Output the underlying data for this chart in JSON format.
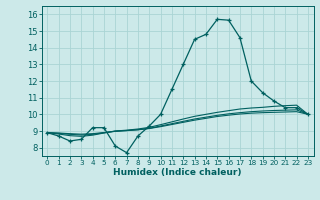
{
  "xlabel": "Humidex (Indice chaleur)",
  "background_color": "#cce9e9",
  "grid_color": "#aad4d4",
  "line_color": "#006060",
  "x_values": [
    0,
    1,
    2,
    3,
    4,
    5,
    6,
    7,
    8,
    9,
    10,
    11,
    12,
    13,
    14,
    15,
    16,
    17,
    18,
    19,
    20,
    21,
    22,
    23
  ],
  "series1": [
    8.9,
    8.7,
    8.4,
    8.5,
    9.2,
    9.2,
    8.1,
    7.7,
    8.7,
    9.3,
    10.0,
    11.5,
    13.0,
    14.5,
    14.8,
    15.7,
    15.65,
    14.6,
    12.0,
    11.3,
    10.8,
    10.4,
    10.4,
    10.0
  ],
  "series2": [
    8.9,
    8.82,
    8.72,
    8.68,
    8.75,
    8.88,
    9.0,
    9.05,
    9.12,
    9.22,
    9.38,
    9.55,
    9.72,
    9.88,
    10.0,
    10.12,
    10.22,
    10.32,
    10.38,
    10.42,
    10.48,
    10.52,
    10.55,
    10.0
  ],
  "series3": [
    8.9,
    8.86,
    8.8,
    8.76,
    8.8,
    8.89,
    8.98,
    9.02,
    9.08,
    9.16,
    9.3,
    9.44,
    9.58,
    9.72,
    9.83,
    9.94,
    10.03,
    10.1,
    10.16,
    10.2,
    10.23,
    10.25,
    10.27,
    10.0
  ],
  "series4": [
    8.9,
    8.88,
    8.84,
    8.81,
    8.84,
    8.91,
    8.99,
    9.03,
    9.07,
    9.15,
    9.26,
    9.39,
    9.52,
    9.65,
    9.76,
    9.87,
    9.95,
    10.02,
    10.07,
    10.1,
    10.12,
    10.14,
    10.16,
    10.0
  ],
  "xlim": [
    -0.5,
    23.5
  ],
  "ylim": [
    7.5,
    16.5
  ],
  "yticks": [
    8,
    9,
    10,
    11,
    12,
    13,
    14,
    15,
    16
  ],
  "xticks": [
    0,
    1,
    2,
    3,
    4,
    5,
    6,
    7,
    8,
    9,
    10,
    11,
    12,
    13,
    14,
    15,
    16,
    17,
    18,
    19,
    20,
    21,
    22,
    23
  ]
}
